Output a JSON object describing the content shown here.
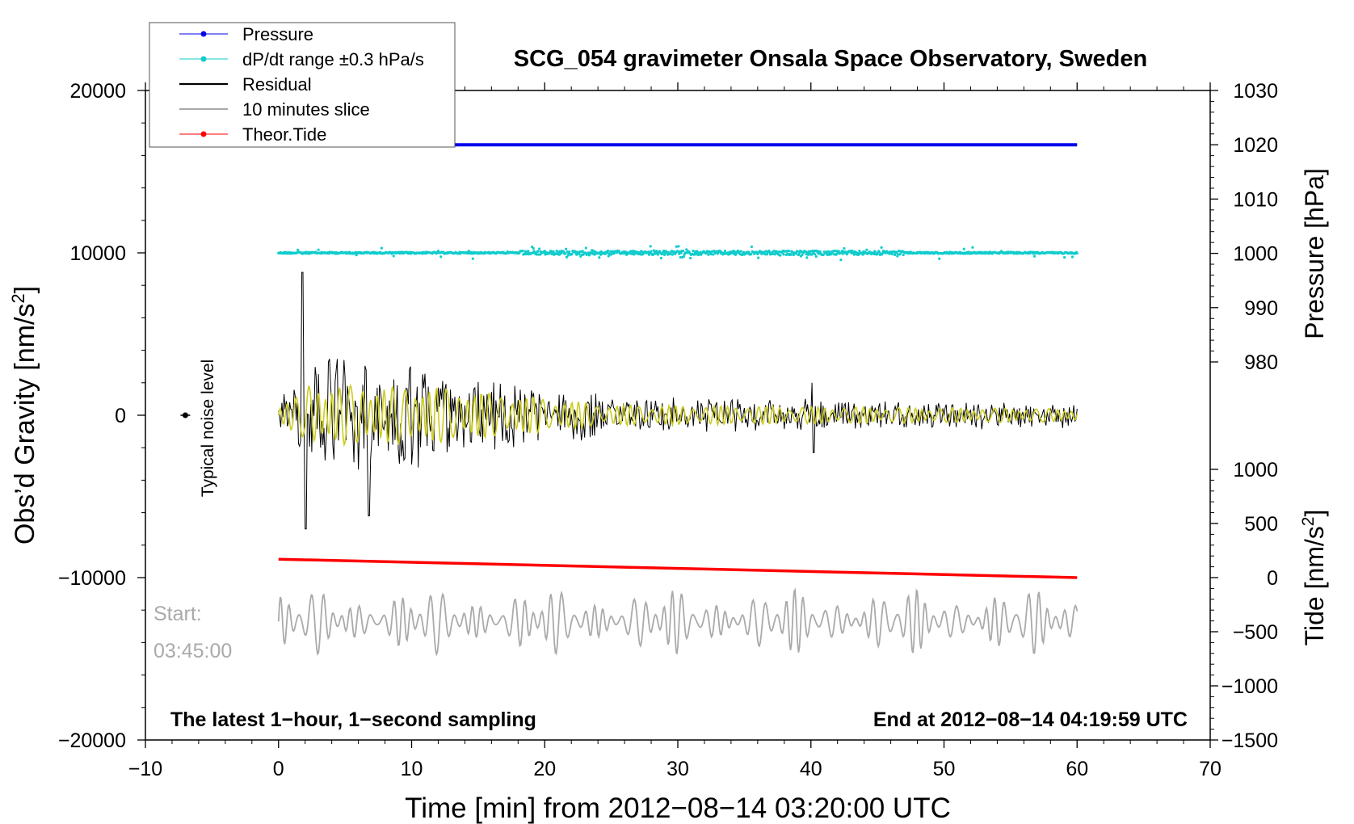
{
  "chart_data": {
    "type": "line",
    "title": "SCG_054 gravimeter Onsala Space Observatory, Sweden",
    "xlabel": "Time [min] from 2012−08−14 03:20:00 UTC",
    "ylabel_left_main": "Obs’d Gravity [nm/s",
    "ylabel_left_sup": "2",
    "ylabel_left_close": "]",
    "ylabel_right_pressure": "Pressure [hPa]",
    "ylabel_right_tide_main": "Tide [nm/s",
    "ylabel_right_tide_sup": "2",
    "ylabel_right_tide_close": "]",
    "xlim": [
      -10,
      70
    ],
    "x_ticks": [
      -10,
      0,
      10,
      20,
      30,
      40,
      50,
      60,
      70
    ],
    "x_tick_labels": [
      "−10",
      "0",
      "10",
      "20",
      "30",
      "40",
      "50",
      "60",
      "70"
    ],
    "ylim_gravity": [
      -20000,
      20000
    ],
    "y_ticks_gravity": [
      -20000,
      -10000,
      0,
      10000,
      20000
    ],
    "y_tick_labels_gravity": [
      "−20000",
      "−10000",
      "0",
      "10000",
      "20000"
    ],
    "pressure_ticks": [
      980,
      990,
      1000,
      1010,
      1020,
      1030
    ],
    "pressure_tick_labels": [
      "980",
      "990",
      "1000",
      "1010",
      "1020",
      "1030"
    ],
    "tide_ticks": [
      -1500,
      -1000,
      -500,
      0,
      500,
      1000
    ],
    "tide_tick_labels": [
      "−1500",
      "−1000",
      "−500",
      "0",
      "500",
      "1000"
    ],
    "legend": [
      {
        "label": "Pressure",
        "color": "#0000ee",
        "marker": true
      },
      {
        "label": "dP/dt range ±0.3 hPa/s",
        "color": "#11cccc",
        "marker": true
      },
      {
        "label": "Residual",
        "color": "#000000",
        "marker": false
      },
      {
        "label": "10 minutes slice",
        "color": "#aaaaaa",
        "marker": false
      },
      {
        "label": "Theor.Tide",
        "color": "#ff0000",
        "marker": true
      }
    ],
    "legend_position": "top-left",
    "series": {
      "pressure": {
        "x_range": [
          0,
          60
        ],
        "value_hpa": 1020,
        "color": "#0000ee"
      },
      "dpdt": {
        "x_range": [
          0,
          60
        ],
        "center_gravity": 10000,
        "color": "#11cccc"
      },
      "residual": {
        "x_range": [
          0,
          60
        ],
        "center_gravity": 0,
        "max_gravity": 8800,
        "min_gravity": -7000,
        "color": "#000000"
      },
      "filtered": {
        "x_range": [
          0,
          60
        ],
        "center_gravity": 0,
        "color": "#cccc22"
      },
      "theor_tide": {
        "x_range": [
          0,
          60
        ],
        "tide_start": 170,
        "tide_end": 0,
        "color": "#ff0000"
      },
      "ten_min_slice": {
        "x_range": [
          0,
          60
        ],
        "center_gravity": -12700,
        "color": "#aaaaaa"
      }
    },
    "noise_marker": {
      "x": -7,
      "gravity": 0,
      "label": "Typical noise level"
    },
    "annotations": {
      "start_label": "Start:",
      "start_time": "03:45:00",
      "bottom_left": "The latest 1−hour, 1−second sampling",
      "bottom_right": "End at 2012−08−14 04:19:59 UTC"
    }
  }
}
